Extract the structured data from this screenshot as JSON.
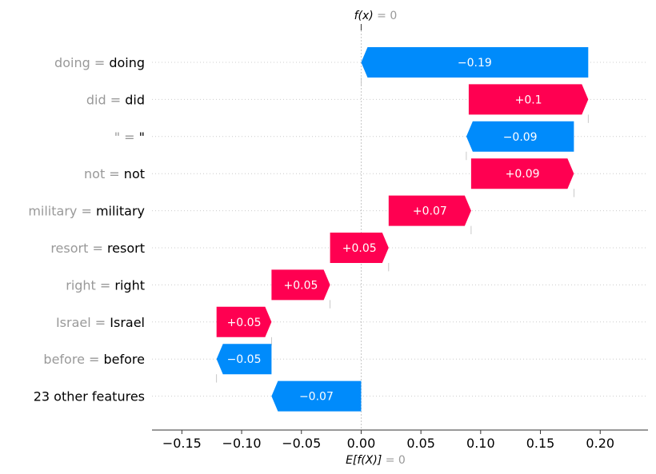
{
  "chart_data": {
    "type": "waterfall",
    "top_label": {
      "fx": "f(x)",
      "value": " = 0"
    },
    "bottom_label": {
      "efx": "E[f(X)]",
      "value": " = 0"
    },
    "xlim": [
      -0.175,
      0.24
    ],
    "xticks": [
      -0.15,
      -0.1,
      -0.05,
      0.0,
      0.05,
      0.1,
      0.15,
      0.2
    ],
    "xtick_labels": [
      "−0.15",
      "−0.10",
      "−0.05",
      "0.00",
      "0.05",
      "0.10",
      "0.15",
      "0.20"
    ],
    "base_value": 0,
    "output_value": 0,
    "colors": {
      "positive": "#ff0051",
      "negative": "#008bfb",
      "feature_value": "#999999",
      "text": "#000000"
    },
    "features": [
      {
        "value_text": "doing =",
        "name": "doing",
        "start": 0.19,
        "end": 0.0,
        "label": "−0.19"
      },
      {
        "value_text": "did  =",
        "name": "did",
        "start": 0.09,
        "end": 0.19,
        "label": "+0.1"
      },
      {
        "value_text": "\" =",
        "name": "\"",
        "start": 0.178,
        "end": 0.088,
        "label": "−0.09"
      },
      {
        "value_text": "not  =",
        "name": "not",
        "start": 0.092,
        "end": 0.178,
        "label": "+0.09"
      },
      {
        "value_text": "military  =",
        "name": "military",
        "start": 0.023,
        "end": 0.092,
        "label": "+0.07"
      },
      {
        "value_text": "resort =",
        "name": "resort",
        "start": -0.026,
        "end": 0.023,
        "label": "+0.05"
      },
      {
        "value_text": "right  =",
        "name": "right",
        "start": -0.075,
        "end": -0.026,
        "label": "+0.05"
      },
      {
        "value_text": "Israel  =",
        "name": "Israel",
        "start": -0.121,
        "end": -0.075,
        "label": "+0.05"
      },
      {
        "value_text": "before  =",
        "name": "before",
        "start": -0.075,
        "end": -0.121,
        "label": "−0.05"
      },
      {
        "value_text": "",
        "name": "23 other features",
        "start": 0.0,
        "end": -0.075,
        "label": "−0.07"
      }
    ]
  }
}
